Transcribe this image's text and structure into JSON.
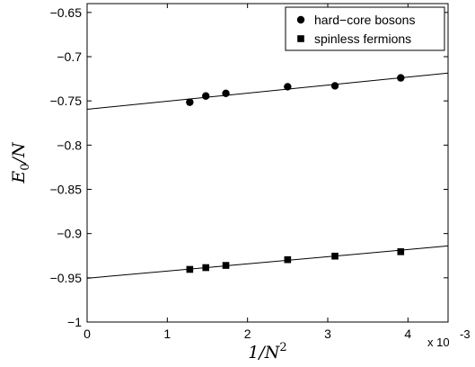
{
  "chart_data": {
    "type": "scatter",
    "title": "",
    "xlabel": "1/N^2",
    "ylabel": "E_0/N",
    "x_multiplier_label": "x 10",
    "x_multiplier_exponent": "-3",
    "xlim": [
      0,
      4.5
    ],
    "ylim": [
      -1,
      -0.64
    ],
    "x_ticks": [
      0,
      1,
      2,
      3,
      4
    ],
    "x_tick_labels": [
      "0",
      "1",
      "2",
      "3",
      "4"
    ],
    "y_ticks": [
      -1,
      -0.95,
      -0.9,
      -0.85,
      -0.8,
      -0.75,
      -0.7,
      -0.65
    ],
    "y_tick_labels": [
      "−1",
      "−0.95",
      "−0.9",
      "−0.85",
      "−0.8",
      "−0.75",
      "−0.7",
      "−0.65"
    ],
    "grid": false,
    "legend_position": "top-right",
    "series": [
      {
        "name": "hard−core bosons",
        "marker": "circle",
        "x": [
          1.28,
          1.48,
          1.73,
          2.5,
          3.09,
          3.91
        ],
        "y": [
          -0.7515,
          -0.7445,
          -0.7415,
          -0.734,
          -0.733,
          -0.724
        ],
        "fit": {
          "x": [
            0,
            4.5
          ],
          "y": [
            -0.7595,
            -0.7185
          ]
        }
      },
      {
        "name": "spinless fermions",
        "marker": "square",
        "x": [
          1.28,
          1.48,
          1.73,
          2.5,
          3.09,
          3.91
        ],
        "y": [
          -0.9405,
          -0.9385,
          -0.936,
          -0.9295,
          -0.9255,
          -0.9205
        ],
        "fit": {
          "x": [
            0,
            4.5
          ],
          "y": [
            -0.9505,
            -0.914
          ]
        }
      }
    ]
  },
  "colors": {
    "marker": "#000000",
    "line": "#000000",
    "axes": "#000000",
    "background": "#ffffff"
  }
}
